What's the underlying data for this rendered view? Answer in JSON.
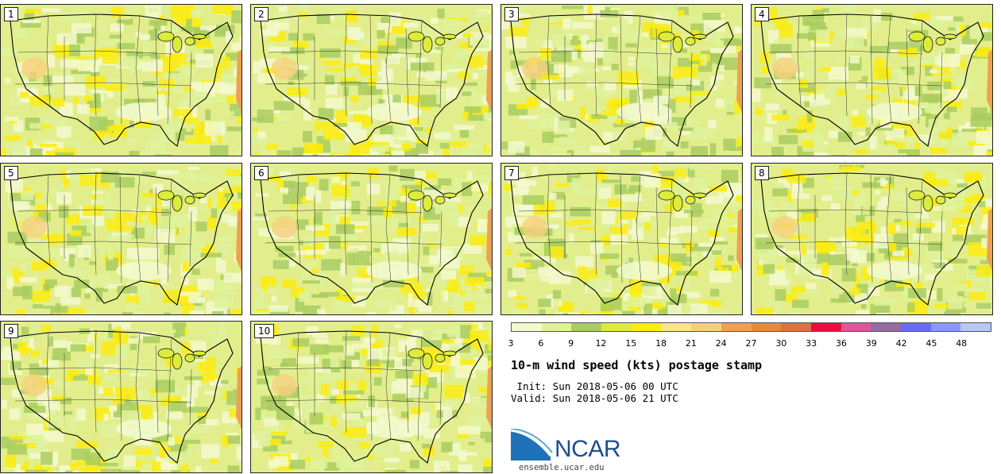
{
  "panels": [
    {
      "label": "1"
    },
    {
      "label": "2"
    },
    {
      "label": "3"
    },
    {
      "label": "4"
    },
    {
      "label": "5"
    },
    {
      "label": "6"
    },
    {
      "label": "7"
    },
    {
      "label": "8"
    },
    {
      "label": "9"
    },
    {
      "label": "10"
    }
  ],
  "legend": {
    "colors": [
      "#f3f9cf",
      "#dff29b",
      "#a9cd62",
      "#dcec3b",
      "#fbec12",
      "#fce48a",
      "#f6cf7e",
      "#eba352",
      "#e58a3c",
      "#db7240",
      "#ec0c43",
      "#e0569a",
      "#946ca4",
      "#6a6af4",
      "#8a98fa",
      "#b6c8f8"
    ],
    "ticks": [
      "3",
      "6",
      "9",
      "12",
      "15",
      "18",
      "21",
      "24",
      "27",
      "30",
      "33",
      "36",
      "39",
      "42",
      "45",
      "48"
    ]
  },
  "title": "10-m wind speed (kts) postage stamp",
  "init": " Init: Sun 2018-05-06 00 UTC",
  "valid": "Valid: Sun 2018-05-06 21 UTC",
  "logo_text": "NCAR",
  "site": "ensemble.ucar.edu"
}
